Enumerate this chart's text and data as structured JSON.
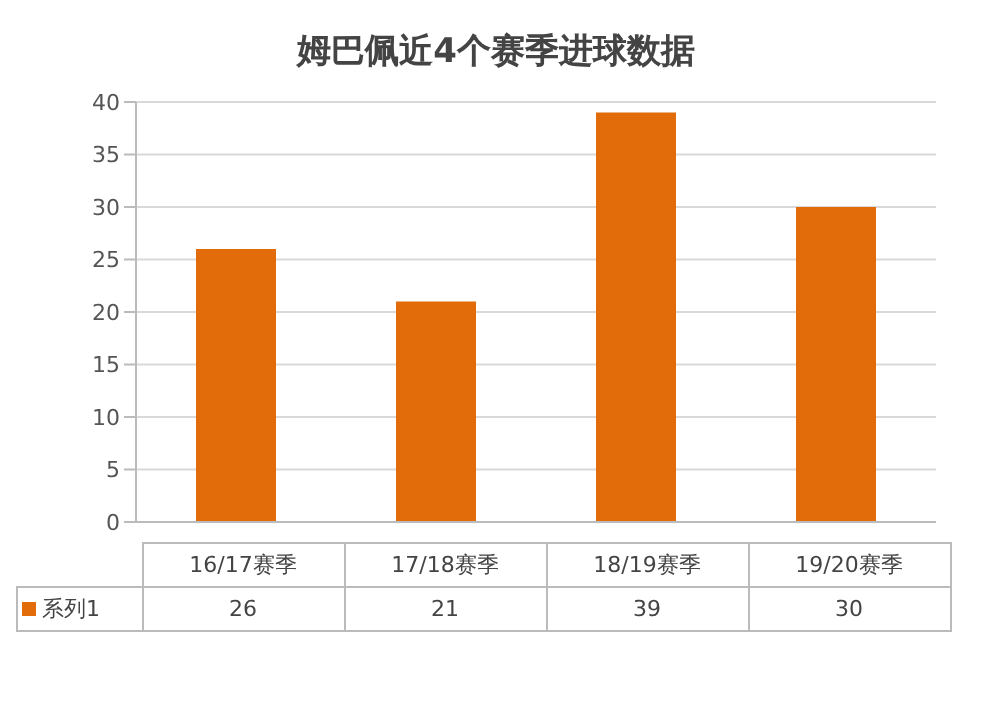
{
  "chart_data": {
    "type": "bar",
    "title": "姆巴佩近4个赛季进球数据",
    "categories": [
      "16/17赛季",
      "17/18赛季",
      "18/19赛季",
      "19/20赛季"
    ],
    "series": [
      {
        "name": "系列1",
        "color": "#e36c0a",
        "values": [
          26,
          21,
          39,
          30
        ]
      }
    ],
    "ylim": [
      0,
      40
    ],
    "yticks": [
      0,
      5,
      10,
      15,
      20,
      25,
      30,
      35,
      40
    ],
    "grid": "y",
    "data_labels": true
  }
}
